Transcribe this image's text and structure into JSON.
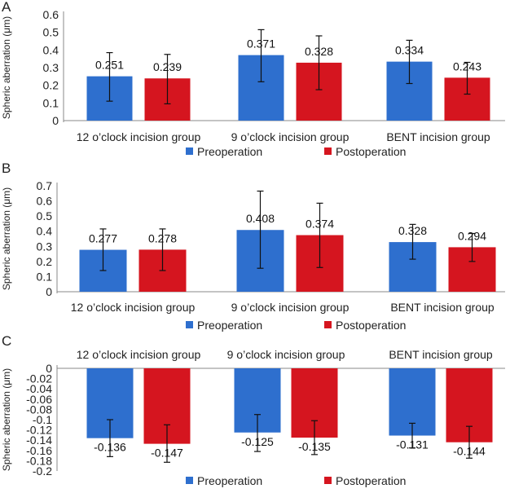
{
  "chart_data": [
    {
      "panel_label": "A",
      "type": "bar",
      "categories": [
        "12 o’clock incision group",
        "9 o’clock incision group",
        "BENT incision group"
      ],
      "ylabel": "Spheric aberration (μm)",
      "ylim": [
        0,
        0.6
      ],
      "yticks": [
        0,
        0.1,
        0.2,
        0.3,
        0.4,
        0.5,
        0.6
      ],
      "ytick_labels": [
        "0",
        "0.1",
        "0.2",
        "0.3",
        "0.4",
        "0.5",
        "0.6"
      ],
      "series": [
        {
          "name": "Preoperation",
          "color": "#2e6fce",
          "values": [
            0.251,
            0.371,
            0.334
          ],
          "labels": [
            "0.251",
            "0.371",
            "0.334"
          ],
          "err_low": [
            0.11,
            0.22,
            0.21
          ],
          "err_high": [
            0.385,
            0.515,
            0.455
          ]
        },
        {
          "name": "Postoperation",
          "color": "#d5151f",
          "values": [
            0.239,
            0.328,
            0.243
          ],
          "labels": [
            "0.239",
            "0.328",
            "0.243"
          ],
          "err_low": [
            0.095,
            0.175,
            0.15
          ],
          "err_high": [
            0.375,
            0.48,
            0.33
          ]
        }
      ],
      "legend": "bottom"
    },
    {
      "panel_label": "B",
      "type": "bar",
      "categories": [
        "12 o’clock incision group",
        "9 o’clock incision group",
        "BENT incision group"
      ],
      "ylabel": "Spheric aberration (μm)",
      "ylim": [
        0,
        0.7
      ],
      "yticks": [
        0,
        0.1,
        0.2,
        0.3,
        0.4,
        0.5,
        0.6,
        0.7
      ],
      "ytick_labels": [
        "0",
        "0.1",
        "0.2",
        "0.3",
        "0.4",
        "0.5",
        "0.6",
        "0.7"
      ],
      "series": [
        {
          "name": "Preoperation",
          "color": "#2e6fce",
          "values": [
            0.277,
            0.408,
            0.328
          ],
          "labels": [
            "0.277",
            "0.408",
            "0.328"
          ],
          "err_low": [
            0.14,
            0.155,
            0.215
          ],
          "err_high": [
            0.415,
            0.665,
            0.445
          ]
        },
        {
          "name": "Postoperation",
          "color": "#d5151f",
          "values": [
            0.278,
            0.374,
            0.294
          ],
          "labels": [
            "0.278",
            "0.374",
            "0.294"
          ],
          "err_low": [
            0.14,
            0.16,
            0.2
          ],
          "err_high": [
            0.415,
            0.585,
            0.385
          ]
        }
      ],
      "legend": "bottom"
    },
    {
      "panel_label": "C",
      "type": "bar",
      "categories": [
        "12 o’clock incision group",
        "9 o’clock incision group",
        "BENT incision group"
      ],
      "category_labels_position": "top",
      "ylabel": "Spheric aberration (μm)",
      "ylim": [
        -0.2,
        0
      ],
      "yticks": [
        0,
        -0.02,
        -0.04,
        -0.06,
        -0.08,
        -0.1,
        -0.12,
        -0.14,
        -0.16,
        -0.18,
        -0.2
      ],
      "ytick_labels": [
        "0",
        "-0.02",
        "-0.04",
        "-0.06",
        "-0.08",
        "-0.1",
        "-0.12",
        "-0.14",
        "-0.16",
        "-0.18",
        "-0.2"
      ],
      "series": [
        {
          "name": "Preoperation",
          "color": "#2e6fce",
          "values": [
            -0.136,
            -0.125,
            -0.131
          ],
          "labels": [
            "-0.136",
            "-0.125",
            "-0.131"
          ],
          "err_low": [
            -0.172,
            -0.162,
            -0.155
          ],
          "err_high": [
            -0.1,
            -0.09,
            -0.107
          ]
        },
        {
          "name": "Postoperation",
          "color": "#d5151f",
          "values": [
            -0.147,
            -0.135,
            -0.144
          ],
          "labels": [
            "-0.147",
            "-0.135",
            "-0.144"
          ],
          "err_low": [
            -0.183,
            -0.168,
            -0.175
          ],
          "err_high": [
            -0.11,
            -0.102,
            -0.113
          ]
        }
      ],
      "legend": "bottom"
    }
  ]
}
